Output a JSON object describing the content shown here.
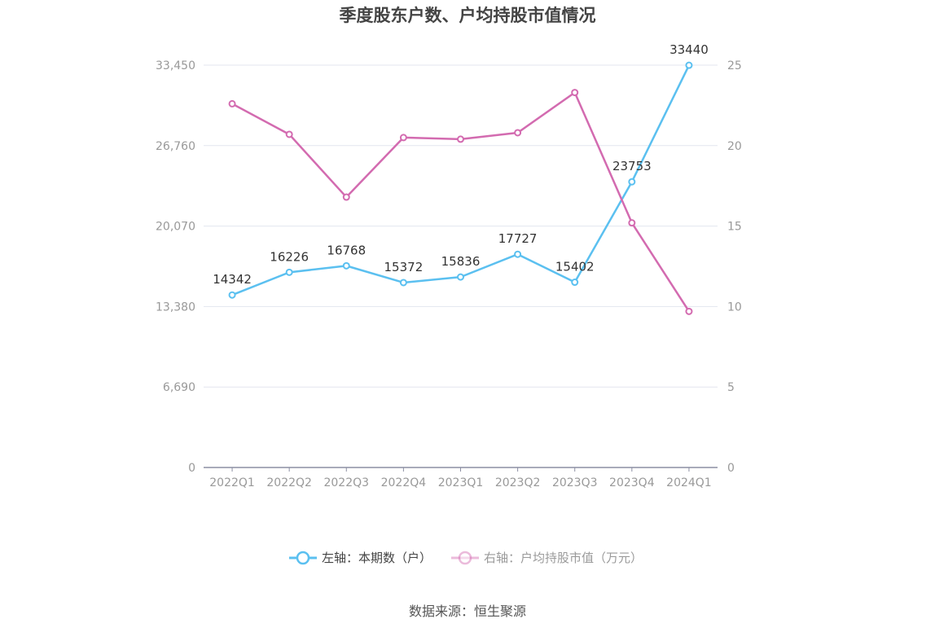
{
  "source_label": "数据来源：恒生聚源",
  "chart_data": {
    "type": "line",
    "title": "季度股东户数、户均持股市值情况",
    "categories": [
      "2022Q1",
      "2022Q2",
      "2022Q3",
      "2022Q4",
      "2023Q1",
      "2023Q2",
      "2023Q3",
      "2023Q4",
      "2024Q1"
    ],
    "left_axis": {
      "ticks": [
        "0",
        "6,690",
        "13,380",
        "20,070",
        "26,760",
        "33,450"
      ],
      "ylim": [
        0,
        33450
      ]
    },
    "right_axis": {
      "ticks": [
        "0",
        "5",
        "10",
        "15",
        "20",
        "25"
      ],
      "ylim": [
        0,
        25
      ]
    },
    "grid": true,
    "legend_position": "bottom",
    "series": [
      {
        "name": "左轴：本期数（户）",
        "axis": "left",
        "color": "#5bc0f0",
        "values": [
          14342,
          16226,
          16768,
          15372,
          15836,
          17727,
          15402,
          23753,
          33440
        ],
        "labels": [
          "14342",
          "16226",
          "16768",
          "15372",
          "15836",
          "17727",
          "15402",
          "23753",
          "33440"
        ]
      },
      {
        "name": "右轴：户均持股市值（万元）",
        "axis": "right",
        "color": "#d36bb0",
        "values": [
          22.6,
          20.7,
          16.8,
          20.5,
          20.4,
          20.8,
          23.3,
          15.2,
          9.7
        ]
      }
    ]
  }
}
